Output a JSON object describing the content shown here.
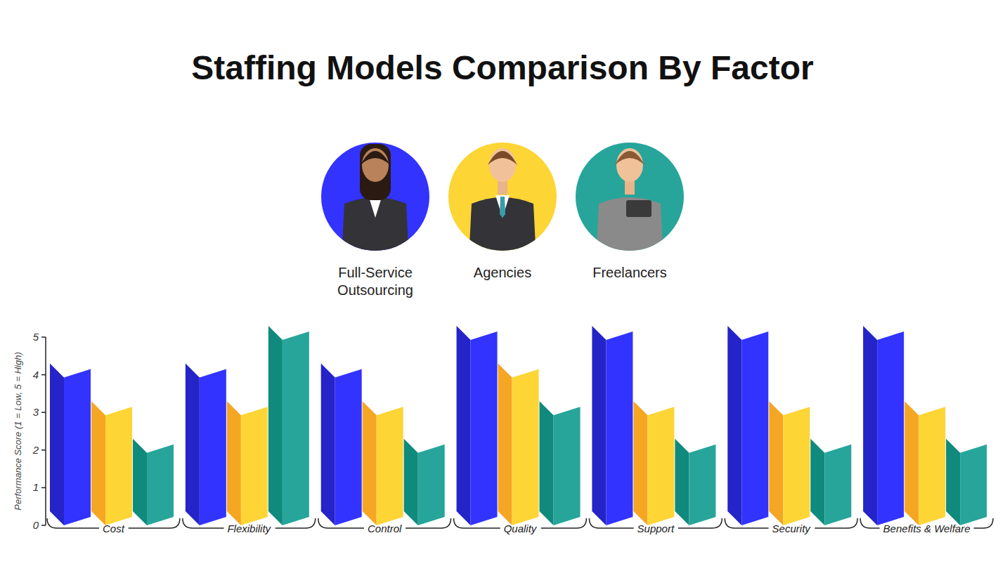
{
  "chart_data": {
    "type": "bar",
    "title": "Staffing Models Comparison By Factor",
    "y_label": "Performance Score (1 = Low, 5 = High)",
    "categories": [
      "Cost",
      "Flexibility",
      "Control",
      "Quality",
      "Support",
      "Security",
      "Benefits & Welfare"
    ],
    "series": [
      {
        "name": "Full-Service Outsourcing",
        "color": "#3333ff",
        "values": [
          4,
          4,
          4,
          5,
          5,
          5,
          5
        ]
      },
      {
        "name": "Agencies",
        "color": "#fdd535",
        "values": [
          3,
          3,
          3,
          4,
          3,
          3,
          3
        ]
      },
      {
        "name": "Freelancers",
        "color": "#27a59a",
        "values": [
          2,
          5,
          2,
          3,
          2,
          2,
          2
        ]
      }
    ],
    "ylim": [
      0,
      5
    ],
    "yticks": [
      0,
      1,
      2,
      3,
      4,
      5
    ],
    "grid": false,
    "legend": "top"
  }
}
